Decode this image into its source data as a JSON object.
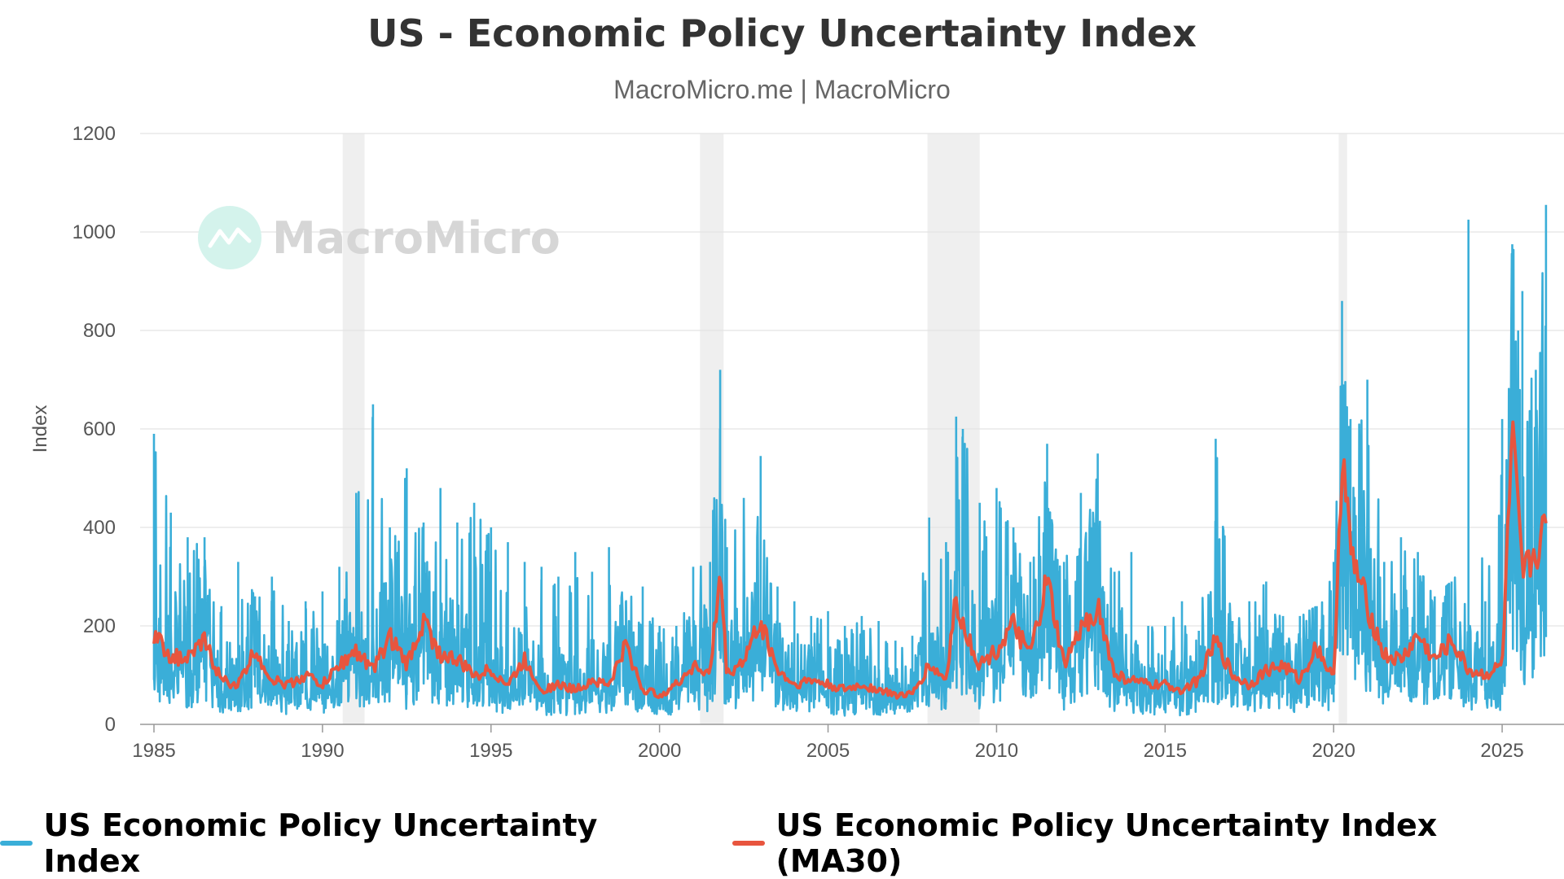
{
  "chart_data": {
    "type": "line",
    "title": "US - Economic Policy Uncertainty Index",
    "subtitle": "MacroMicro.me | MacroMicro",
    "watermark": "MacroMicro",
    "ylabel": "Index",
    "xlabel": "",
    "ylim": [
      0,
      1200
    ],
    "xlim": [
      1985,
      2026.4
    ],
    "y_ticks": [
      0,
      200,
      400,
      600,
      800,
      1000,
      1200
    ],
    "x_ticks": [
      1985,
      1990,
      1995,
      2000,
      2005,
      2010,
      2015,
      2020,
      2025
    ],
    "grid": true,
    "legend_position": "bottom",
    "shaded_periods": [
      [
        1990.6,
        1991.25
      ],
      [
        2001.2,
        2001.9
      ],
      [
        2007.95,
        2009.5
      ],
      [
        2020.15,
        2020.4
      ]
    ],
    "series": [
      {
        "name": "US Economic Policy Uncertainty Index",
        "color": "#3aaed8",
        "x": [
          1985,
          1985.5,
          1986,
          1986.5,
          1987,
          1987.5,
          1988,
          1988.5,
          1989,
          1989.5,
          1990,
          1990.5,
          1991,
          1991.5,
          1992,
          1992.5,
          1993,
          1993.5,
          1994,
          1994.5,
          1995,
          1995.5,
          1996,
          1996.5,
          1997,
          1997.5,
          1998,
          1998.5,
          1999,
          1999.5,
          2000,
          2000.5,
          2001,
          2001.5,
          2001.8,
          2002,
          2002.5,
          2003,
          2003.5,
          2004,
          2004.5,
          2005,
          2005.5,
          2006,
          2006.5,
          2007,
          2007.5,
          2008,
          2008.5,
          2008.8,
          2009,
          2009.5,
          2010,
          2010.5,
          2011,
          2011.5,
          2012,
          2012.5,
          2013,
          2013.5,
          2014,
          2014.5,
          2015,
          2015.5,
          2016,
          2016.5,
          2017,
          2017.5,
          2018,
          2018.5,
          2019,
          2019.5,
          2020,
          2020.25,
          2020.5,
          2021,
          2021.5,
          2022,
          2022.5,
          2023,
          2023.5,
          2024,
          2024.5,
          2025,
          2025.3,
          2025.6,
          2026,
          2026.3
        ],
        "values": [
          590,
          430,
          380,
          380,
          240,
          330,
          260,
          300,
          210,
          250,
          270,
          320,
          470,
          650,
          400,
          520,
          410,
          480,
          410,
          450,
          400,
          370,
          330,
          320,
          300,
          350,
          310,
          360,
          250,
          280,
          200,
          200,
          320,
          330,
          720,
          360,
          460,
          545,
          280,
          250,
          220,
          230,
          200,
          220,
          210,
          170,
          180,
          420,
          370,
          625,
          600,
          450,
          480,
          400,
          330,
          570,
          330,
          470,
          550,
          310,
          350,
          200,
          200,
          250,
          190,
          580,
          210,
          250,
          290,
          220,
          220,
          240,
          330,
          860,
          620,
          700,
          330,
          380,
          350,
          260,
          290,
          1025,
          250,
          620,
          975,
          880,
          720,
          1055
        ]
      },
      {
        "name": "US Economic Policy Uncertainty Index (MA30)",
        "color": "#e8553e",
        "x": [
          1985,
          1985.5,
          1986,
          1986.5,
          1987,
          1987.5,
          1988,
          1988.5,
          1989,
          1989.5,
          1990,
          1990.5,
          1991,
          1991.5,
          1992,
          1992.5,
          1993,
          1993.5,
          1994,
          1994.5,
          1995,
          1995.5,
          1996,
          1996.5,
          1997,
          1997.5,
          1998,
          1998.5,
          1999,
          1999.5,
          2000,
          2000.5,
          2001,
          2001.5,
          2001.8,
          2002,
          2002.5,
          2003,
          2003.5,
          2004,
          2004.5,
          2005,
          2005.5,
          2006,
          2006.5,
          2007,
          2007.5,
          2008,
          2008.5,
          2008.8,
          2009,
          2009.5,
          2010,
          2010.5,
          2011,
          2011.5,
          2012,
          2012.5,
          2013,
          2013.5,
          2014,
          2014.5,
          2015,
          2015.5,
          2016,
          2016.5,
          2017,
          2017.5,
          2018,
          2018.5,
          2019,
          2019.5,
          2020,
          2020.25,
          2020.5,
          2021,
          2021.5,
          2022,
          2022.5,
          2023,
          2023.5,
          2024,
          2024.5,
          2025,
          2025.3,
          2025.6,
          2026,
          2026.3
        ],
        "values": [
          180,
          140,
          130,
          170,
          90,
          80,
          150,
          90,
          80,
          100,
          80,
          120,
          150,
          110,
          180,
          120,
          210,
          140,
          130,
          100,
          110,
          80,
          130,
          70,
          80,
          70,
          90,
          80,
          160,
          70,
          60,
          80,
          120,
          100,
          310,
          100,
          130,
          210,
          110,
          80,
          90,
          80,
          70,
          80,
          70,
          60,
          60,
          120,
          90,
          260,
          200,
          120,
          150,
          200,
          140,
          290,
          120,
          190,
          240,
          100,
          90,
          80,
          80,
          70,
          90,
          170,
          100,
          80,
          110,
          120,
          90,
          160,
          90,
          560,
          350,
          240,
          140,
          130,
          180,
          130,
          170,
          110,
          100,
          120,
          580,
          300,
          350,
          400
        ]
      }
    ]
  }
}
